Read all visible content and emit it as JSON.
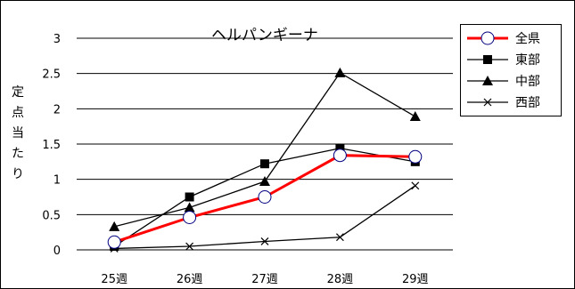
{
  "chart_data": {
    "type": "line",
    "title": "ヘルパンギーナ",
    "ylabel_chars": [
      "定",
      "点",
      "当",
      "た",
      "り"
    ],
    "xlabel": "",
    "categories": [
      "25週",
      "26週",
      "27週",
      "28週",
      "29週"
    ],
    "ylim": [
      0,
      3
    ],
    "yticks": [
      "0",
      "0.5",
      "1",
      "1.5",
      "2",
      "2.5",
      "3"
    ],
    "grid": true,
    "legend_position": "top-right",
    "series": [
      {
        "name": "全県",
        "values": [
          0.11,
          0.46,
          0.75,
          1.34,
          1.32
        ],
        "color": "#ff0000",
        "marker": "circle"
      },
      {
        "name": "東部",
        "values": [
          0.05,
          0.75,
          1.22,
          1.44,
          1.25
        ],
        "color": "#000000",
        "marker": "square"
      },
      {
        "name": "中部",
        "values": [
          0.33,
          0.6,
          0.97,
          2.51,
          1.89
        ],
        "color": "#000000",
        "marker": "triangle"
      },
      {
        "name": "西部",
        "values": [
          0.02,
          0.05,
          0.12,
          0.18,
          0.91
        ],
        "color": "#000000",
        "marker": "x"
      }
    ]
  }
}
